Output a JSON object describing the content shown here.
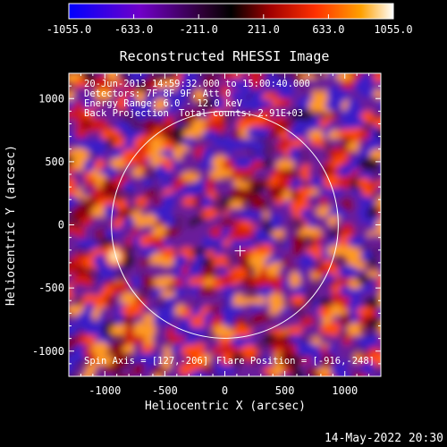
{
  "chart_data": {
    "type": "heatmap",
    "title": "Reconstructed RHESSI Image",
    "xlabel": "Heliocentric X (arcsec)",
    "ylabel": "Heliocentric Y (arcsec)",
    "xlim": [
      -1300,
      1300
    ],
    "ylim": [
      -1200,
      1200
    ],
    "x_ticks": [
      -1000,
      -500,
      0,
      500,
      1000
    ],
    "x_tick_labels": [
      "-1000",
      "-500",
      "0",
      "500",
      "1000"
    ],
    "y_ticks": [
      -1000,
      -500,
      0,
      500,
      1000
    ],
    "y_tick_labels": [
      "-1000",
      "-500",
      "0",
      "500",
      "1000"
    ],
    "colorbar": {
      "range": [
        -1055.0,
        1055.0
      ],
      "ticks": [
        -1055.0,
        -633.0,
        -211.0,
        211.0,
        633.0,
        1055.0
      ],
      "tick_labels": [
        "-1055.0",
        "-633.0",
        "-211.0",
        "211.0",
        "633.0",
        "1055.0"
      ],
      "colors": [
        "#0000ff",
        "#7000c8",
        "#2a0030",
        "#000000",
        "#a00000",
        "#ff3000",
        "#ffa000",
        "#ffffff"
      ]
    },
    "solar_limb": {
      "center": [
        0,
        0
      ],
      "radius": 945
    },
    "spin_axis": [
      127,
      -206
    ],
    "flare_position": [
      -916,
      -248
    ],
    "annotations": [
      "20-Jun-2013 14:59:32.000 to 15:00:40.000",
      "Detectors: 7F 8F 9F, Att 0",
      "Energy Range: 6.0 - 12.0 keV",
      "Back Projection",
      "Total counts: 2.91E+03",
      "Spin Axis = [127,-206]",
      "Flare Position = [-916,-248]"
    ]
  },
  "footer": {
    "date": "14-May-2022 20:30"
  }
}
